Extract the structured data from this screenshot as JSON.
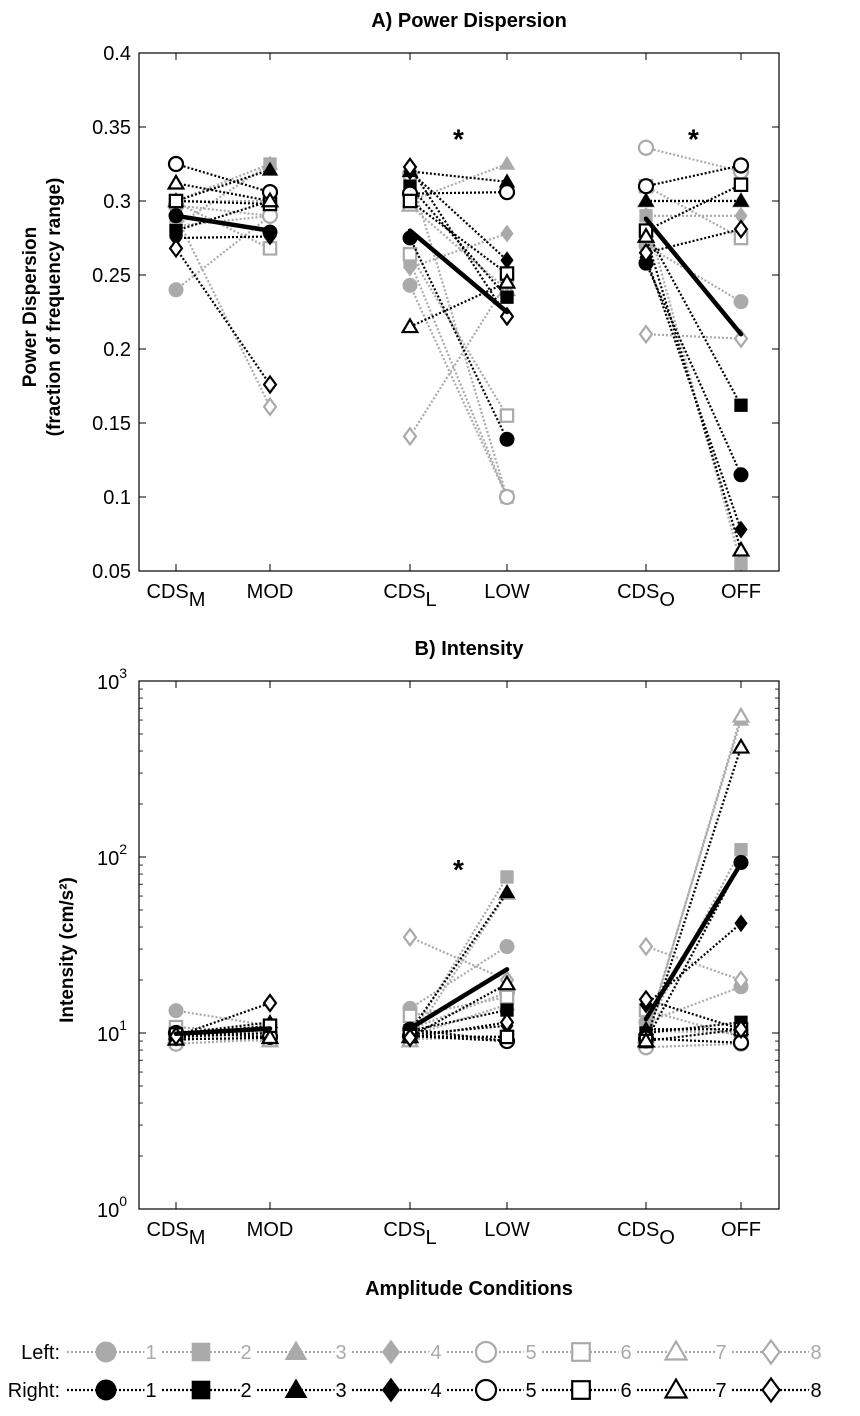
{
  "chart_data": [
    {
      "type": "line",
      "title": "A) Power Dispersion",
      "ylabel_lines": [
        "Power Dispersion",
        "(fraction of frequency  range)"
      ],
      "y_scale": "linear",
      "ylim": [
        0.05,
        0.4
      ],
      "y_ticks": [
        0.05,
        0.1,
        0.15,
        0.2,
        0.25,
        0.3,
        0.35,
        0.4
      ],
      "y_tick_labels": [
        "0.05",
        "0.1",
        "0.15",
        "0.2",
        "0.25",
        "0.3",
        "0.35",
        "0.4"
      ],
      "grid": false,
      "x_categories": [
        {
          "text": "CDS",
          "sub": "M"
        },
        {
          "text": "MOD",
          "sub": ""
        },
        {
          "text": "CDS",
          "sub": "L"
        },
        {
          "text": "LOW",
          "sub": ""
        },
        {
          "text": "CDS",
          "sub": "O"
        },
        {
          "text": "OFF",
          "sub": ""
        }
      ],
      "significance": [
        {
          "pair": 1,
          "label": "*",
          "y": 0.345
        },
        {
          "pair": 2,
          "label": "*",
          "y": 0.345
        }
      ],
      "mean": [
        [
          0.29,
          0.28
        ],
        [
          0.28,
          0.225
        ],
        [
          0.288,
          0.21
        ]
      ],
      "series": [
        {
          "side": "left",
          "num": "1",
          "values": [
            [
              0.24,
              0.29
            ],
            [
              0.243,
              0.1
            ],
            [
              0.27,
              0.232
            ]
          ]
        },
        {
          "side": "left",
          "num": "2",
          "values": [
            [
              0.283,
              0.325
            ],
            [
              0.259,
              0.1
            ],
            [
              0.29,
              0.055
            ]
          ]
        },
        {
          "side": "left",
          "num": "3",
          "values": [
            [
              0.3,
              0.325
            ],
            [
              0.3,
              0.325
            ],
            [
              0.3,
              0.3
            ]
          ]
        },
        {
          "side": "left",
          "num": "4",
          "values": [
            [
              0.283,
              0.29
            ],
            [
              0.255,
              0.278
            ],
            [
              0.29,
              0.29
            ]
          ]
        },
        {
          "side": "left",
          "num": "5",
          "values": [
            [
              0.297,
              0.29
            ],
            [
              0.318,
              0.1
            ],
            [
              0.336,
              0.32
            ]
          ]
        },
        {
          "side": "left",
          "num": "6",
          "values": [
            [
              0.299,
              0.268
            ],
            [
              0.264,
              0.155
            ],
            [
              0.31,
              0.275
            ]
          ]
        },
        {
          "side": "left",
          "num": "7",
          "values": [
            [
              0.3,
              0.3
            ],
            [
              0.297,
              0.24
            ],
            [
              0.3,
              0.3
            ]
          ]
        },
        {
          "side": "left",
          "num": "8",
          "values": [
            [
              0.29,
              0.161
            ],
            [
              0.141,
              0.245
            ],
            [
              0.21,
              0.207
            ]
          ]
        },
        {
          "side": "right",
          "num": "1",
          "values": [
            [
              0.29,
              0.279
            ],
            [
              0.275,
              0.139
            ],
            [
              0.258,
              0.115
            ]
          ]
        },
        {
          "side": "right",
          "num": "2",
          "values": [
            [
              0.28,
              0.3
            ],
            [
              0.31,
              0.235
            ],
            [
              0.28,
              0.162
            ]
          ]
        },
        {
          "side": "right",
          "num": "3",
          "values": [
            [
              0.3,
              0.321
            ],
            [
              0.32,
              0.313
            ],
            [
              0.3,
              0.3
            ]
          ]
        },
        {
          "side": "right",
          "num": "4",
          "values": [
            [
              0.275,
              0.276
            ],
            [
              0.32,
              0.26
            ],
            [
              0.262,
              0.078
            ]
          ]
        },
        {
          "side": "right",
          "num": "5",
          "values": [
            [
              0.325,
              0.306
            ],
            [
              0.305,
              0.306
            ],
            [
              0.31,
              0.324
            ]
          ]
        },
        {
          "side": "right",
          "num": "6",
          "values": [
            [
              0.3,
              0.298
            ],
            [
              0.3,
              0.251
            ],
            [
              0.28,
              0.311
            ]
          ]
        },
        {
          "side": "right",
          "num": "7",
          "values": [
            [
              0.312,
              0.3
            ],
            [
              0.215,
              0.245
            ],
            [
              0.276,
              0.064
            ]
          ]
        },
        {
          "side": "right",
          "num": "8",
          "values": [
            [
              0.268,
              0.176
            ],
            [
              0.323,
              0.222
            ],
            [
              0.265,
              0.281
            ]
          ]
        }
      ]
    },
    {
      "type": "line",
      "title": "B) Intensity",
      "ylabel": "Intensity (cm/s²)",
      "y_scale": "log",
      "ylim": [
        1,
        1000
      ],
      "y_ticks": [
        1,
        10,
        100,
        1000
      ],
      "y_tick_labels": [
        {
          "base": "10",
          "exp": "0"
        },
        {
          "base": "10",
          "exp": "1"
        },
        {
          "base": "10",
          "exp": "2"
        },
        {
          "base": "10",
          "exp": "3"
        }
      ],
      "grid": false,
      "x_categories": [
        {
          "text": "CDS",
          "sub": "M"
        },
        {
          "text": "MOD",
          "sub": ""
        },
        {
          "text": "CDS",
          "sub": "L"
        },
        {
          "text": "LOW",
          "sub": ""
        },
        {
          "text": "CDS",
          "sub": "O"
        },
        {
          "text": "OFF",
          "sub": ""
        }
      ],
      "xlabel": "Amplitude Conditions",
      "significance": [
        {
          "pair": 1,
          "label": "*",
          "y": 90
        }
      ],
      "mean": [
        [
          9.9,
          10.6
        ],
        [
          10.6,
          23
        ],
        [
          12,
          92
        ]
      ],
      "series": [
        {
          "side": "left",
          "num": "1",
          "values": [
            [
              13.4,
              11.0
            ],
            [
              13.8,
              31
            ],
            [
              11.5,
              18.3
            ]
          ]
        },
        {
          "side": "left",
          "num": "2",
          "values": [
            [
              10.2,
              10.1
            ],
            [
              9.5,
              77
            ],
            [
              10.5,
              110
            ]
          ]
        },
        {
          "side": "left",
          "num": "3",
          "values": [
            [
              9.8,
              9.8
            ],
            [
              9.6,
              14.5
            ],
            [
              9.8,
              600
            ]
          ]
        },
        {
          "side": "left",
          "num": "4",
          "values": [
            [
              9.0,
              10.3
            ],
            [
              9.2,
              9.6
            ],
            [
              10.3,
              10.0
            ]
          ]
        },
        {
          "side": "left",
          "num": "5",
          "values": [
            [
              8.7,
              9.2
            ],
            [
              10.5,
              17
            ],
            [
              8.3,
              8.7
            ]
          ]
        },
        {
          "side": "left",
          "num": "6",
          "values": [
            [
              10.8,
              10.0
            ],
            [
              12.5,
              16
            ],
            [
              13.5,
              9.5
            ]
          ]
        },
        {
          "side": "left",
          "num": "7",
          "values": [
            [
              9.4,
              9.0
            ],
            [
              9.0,
              62
            ],
            [
              9.5,
              630
            ]
          ]
        },
        {
          "side": "left",
          "num": "8",
          "values": [
            [
              9.6,
              10.4
            ],
            [
              35,
              20
            ],
            [
              31,
              20
            ]
          ]
        },
        {
          "side": "right",
          "num": "1",
          "values": [
            [
              9.5,
              10.0
            ],
            [
              10.5,
              9.0
            ],
            [
              9.0,
              93
            ]
          ]
        },
        {
          "side": "right",
          "num": "2",
          "values": [
            [
              9.5,
              11.0
            ],
            [
              10.3,
              13.5
            ],
            [
              10.0,
              11.5
            ]
          ]
        },
        {
          "side": "right",
          "num": "3",
          "values": [
            [
              9.9,
              11.5
            ],
            [
              10.2,
              63
            ],
            [
              10.5,
              10.5
            ]
          ]
        },
        {
          "side": "right",
          "num": "4",
          "values": [
            [
              9.4,
              10.5
            ],
            [
              9.8,
              11.0
            ],
            [
              14.5,
              42
            ]
          ]
        },
        {
          "side": "right",
          "num": "5",
          "values": [
            [
              10.0,
              9.5
            ],
            [
              9.6,
              9.0
            ],
            [
              9.3,
              8.8
            ]
          ]
        },
        {
          "side": "right",
          "num": "6",
          "values": [
            [
              9.8,
              11.0
            ],
            [
              9.6,
              9.5
            ],
            [
              9.0,
              10.5
            ]
          ]
        },
        {
          "side": "right",
          "num": "7",
          "values": [
            [
              9.2,
              9.4
            ],
            [
              9.5,
              19
            ],
            [
              9.0,
              420
            ]
          ]
        },
        {
          "side": "right",
          "num": "8",
          "values": [
            [
              9.6,
              14.8
            ],
            [
              9.4,
              11.5
            ],
            [
              15.5,
              10.5
            ]
          ]
        }
      ]
    }
  ],
  "legend": {
    "placement": "bottom",
    "rows": [
      {
        "side": "left",
        "label": "Left:",
        "items": [
          "1",
          "2",
          "3",
          "4",
          "5",
          "6",
          "7",
          "8"
        ]
      },
      {
        "side": "right",
        "label": "Right:",
        "items": [
          "1",
          "2",
          "3",
          "4",
          "5",
          "6",
          "7",
          "8"
        ]
      }
    ]
  },
  "markers": {
    "1": "circle",
    "2": "square",
    "3": "triangle",
    "4": "diamond",
    "5": "circle",
    "6": "square",
    "7": "triangle",
    "8": "diamond"
  },
  "filled": {
    "1": true,
    "2": true,
    "3": true,
    "4": true,
    "5": false,
    "6": false,
    "7": false,
    "8": false
  },
  "colors": {
    "left": "#aaaaaa",
    "right": "#000000",
    "mean": "#000000",
    "background": "#ffffff"
  }
}
